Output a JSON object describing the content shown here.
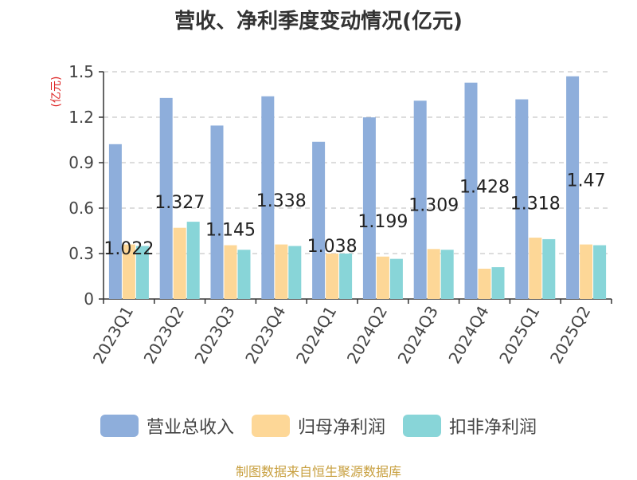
{
  "chart_data": {
    "type": "bar",
    "title": "营收、净利季度变动情况(亿元)",
    "ylabel": "(亿元)",
    "categories": [
      "2023Q1",
      "2023Q2",
      "2023Q3",
      "2023Q4",
      "2024Q1",
      "2024Q2",
      "2024Q3",
      "2024Q4",
      "2025Q1",
      "2025Q2"
    ],
    "series": [
      {
        "name": "营业总收入",
        "color": "#8eaedb",
        "values": [
          1.022,
          1.327,
          1.145,
          1.338,
          1.038,
          1.199,
          1.309,
          1.428,
          1.318,
          1.47
        ]
      },
      {
        "name": "归母净利润",
        "color": "#fdd797",
        "values": [
          0.36,
          0.47,
          0.355,
          0.36,
          0.3,
          0.28,
          0.33,
          0.2,
          0.405,
          0.36
        ]
      },
      {
        "name": "扣非净利润",
        "color": "#88d5d8",
        "values": [
          0.35,
          0.51,
          0.325,
          0.35,
          0.3,
          0.265,
          0.325,
          0.21,
          0.395,
          0.355
        ]
      }
    ],
    "data_labels": [
      "1.022",
      "1.327",
      "1.145",
      "1.338",
      "1.038",
      "1.199",
      "1.309",
      "1.428",
      "1.318",
      "1.47"
    ],
    "yticks": [
      "0",
      "0.3",
      "0.6",
      "0.9",
      "1.2",
      "1.5"
    ],
    "ylim": [
      0,
      1.5
    ],
    "grid": true,
    "legend_position": "bottom"
  },
  "source": "制图数据来自恒生聚源数据库"
}
